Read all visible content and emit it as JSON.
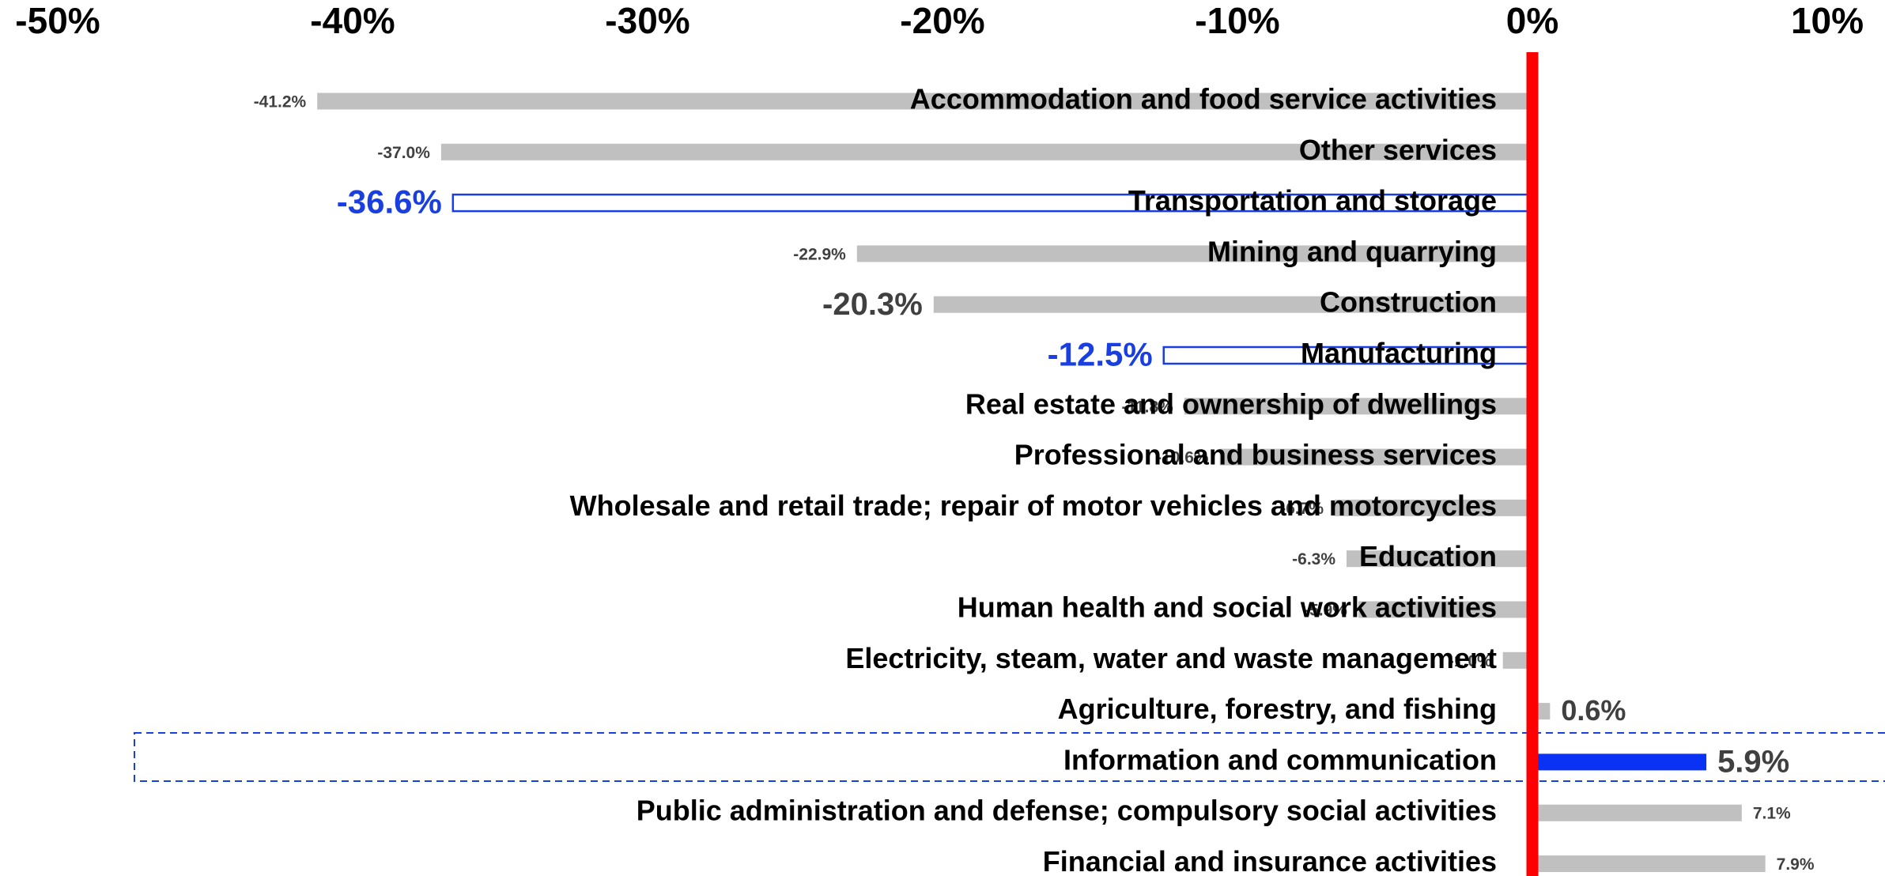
{
  "chart_data": {
    "type": "hbar",
    "categories": [
      "Accommodation and food service activities",
      "Other services",
      "Transportation and storage",
      "Mining and quarrying",
      "Construction",
      "Manufacturing",
      "Real estate and ownership of dwellings",
      "Professional and business services",
      "Wholesale and retail trade; repair of motor vehicles and motorcycles",
      "Education",
      "Human health and social work activities",
      "Electricity, steam, water and waste management",
      "Agriculture, forestry, and fishing",
      "Information and communication",
      "Public administration and defense;  compulsory social activities",
      "Financial and insurance activities"
    ],
    "values": [
      -41.2,
      -37.0,
      -36.6,
      -22.9,
      -20.3,
      -12.5,
      -11.8,
      -10.6,
      -6.7,
      -6.3,
      -5.9,
      -1.0,
      0.6,
      5.9,
      7.1,
      7.9
    ],
    "value_labels": [
      "-41.2%",
      "-37.0%",
      "-36.6%",
      "-22.9%",
      "-20.3%",
      "-12.5%",
      "-11.8%",
      "-10.6%",
      "-6.7%",
      "-6.3%",
      "-5.9%",
      "-1.0%",
      "0.6%",
      "5.9%",
      "7.1%",
      "7.9%"
    ],
    "bar_colors": [
      "#c0c0c0",
      "#c0c0c0",
      "#1a3fe0",
      "#c0c0c0",
      "#c0c0c0",
      "#1a3fe0",
      "#c0c0c0",
      "#c0c0c0",
      "#c0c0c0",
      "#c0c0c0",
      "#c0c0c0",
      "#c0c0c0",
      "#c0c0c0",
      "#0a32f5",
      "#c0c0c0",
      "#c0c0c0"
    ],
    "bar_styles": [
      "fill",
      "fill",
      "outline",
      "fill",
      "fill",
      "outline",
      "fill",
      "fill",
      "fill",
      "fill",
      "fill",
      "fill",
      "fill",
      "fill",
      "fill",
      "fill"
    ],
    "label_styles": [
      "small",
      "small",
      "blue",
      "small",
      "large",
      "blue",
      "small",
      "small",
      "small",
      "small",
      "small",
      "small",
      "medium",
      "large",
      "small",
      "small"
    ],
    "xlim": [
      -50,
      10
    ],
    "xticks": [
      {
        "value": -50,
        "label": "-50%"
      },
      {
        "value": -40,
        "label": "-40%"
      },
      {
        "value": -30,
        "label": "-30%"
      },
      {
        "value": -20,
        "label": "-20%"
      },
      {
        "value": -10,
        "label": "-10%"
      },
      {
        "value": 0,
        "label": "0%"
      },
      {
        "value": 10,
        "label": "10%"
      }
    ],
    "zero_line_color": "#ff0000"
  }
}
